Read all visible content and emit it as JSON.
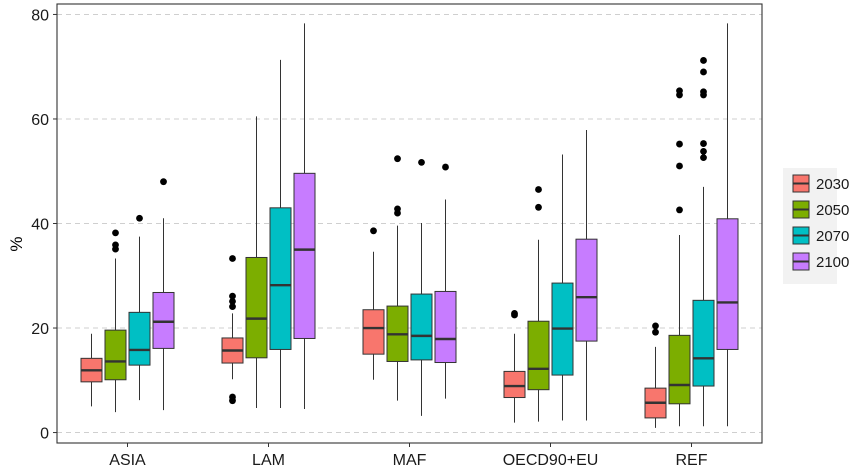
{
  "chart_data": {
    "type": "boxplot",
    "title": "",
    "xlabel": "",
    "ylabel": "%",
    "ylim": [
      -2,
      82
    ],
    "yticks": [
      0,
      20,
      40,
      60,
      80
    ],
    "grid": "horizontal-dashed",
    "legend_placement": "right",
    "categories": [
      "ASIA",
      "LAM",
      "MAF",
      "OECD90+EU",
      "REF"
    ],
    "series": [
      {
        "name": "2030",
        "color": "#F8766D"
      },
      {
        "name": "2050",
        "color": "#7CAE00"
      },
      {
        "name": "2070",
        "color": "#00BFC4"
      },
      {
        "name": "2100",
        "color": "#C77CFF"
      }
    ],
    "boxes": [
      [
        {
          "min": 5,
          "q1": 9.7,
          "median": 11.9,
          "q3": 14.2,
          "max": 18.9,
          "outliers": []
        },
        {
          "min": 3.9,
          "q1": 10.1,
          "median": 13.6,
          "q3": 19.6,
          "max": 33.3,
          "outliers": [
            35.1,
            35.9,
            38.2
          ]
        },
        {
          "min": 6.2,
          "q1": 12.9,
          "median": 15.8,
          "q3": 23,
          "max": 37.5,
          "outliers": [
            41
          ]
        },
        {
          "min": 4.3,
          "q1": 16.1,
          "median": 21.2,
          "q3": 26.8,
          "max": 41,
          "outliers": [
            48
          ]
        }
      ],
      [
        {
          "min": 10.2,
          "q1": 13.3,
          "median": 15.7,
          "q3": 18.1,
          "max": 22.8,
          "outliers": [
            6.1,
            6.8,
            24.1,
            25.1,
            26.1,
            33.3
          ]
        },
        {
          "min": 4.7,
          "q1": 14.3,
          "median": 21.8,
          "q3": 33.5,
          "max": 60.5,
          "outliers": []
        },
        {
          "min": 4.7,
          "q1": 15.9,
          "median": 28.2,
          "q3": 43,
          "max": 71.3,
          "outliers": []
        },
        {
          "min": 4.5,
          "q1": 18,
          "median": 35,
          "q3": 49.6,
          "max": 78.3,
          "outliers": []
        }
      ],
      [
        {
          "min": 10.1,
          "q1": 15,
          "median": 20,
          "q3": 23.5,
          "max": 34.6,
          "outliers": [
            38.6
          ]
        },
        {
          "min": 6.1,
          "q1": 13.6,
          "median": 18.8,
          "q3": 24.2,
          "max": 39.6,
          "outliers": [
            42,
            42.8,
            52.4
          ]
        },
        {
          "min": 3.2,
          "q1": 13.9,
          "median": 18.5,
          "q3": 26.5,
          "max": 40.1,
          "outliers": [
            51.7
          ]
        },
        {
          "min": 6.5,
          "q1": 13.4,
          "median": 17.9,
          "q3": 27,
          "max": 44.6,
          "outliers": [
            50.8
          ]
        }
      ],
      [
        {
          "min": 1.9,
          "q1": 6.7,
          "median": 8.9,
          "q3": 11.7,
          "max": 18.9,
          "outliers": [
            22.5,
            22.8
          ]
        },
        {
          "min": 2.1,
          "q1": 8.2,
          "median": 12.2,
          "q3": 21.3,
          "max": 36.9,
          "outliers": [
            43.1,
            46.5
          ]
        },
        {
          "min": 2.3,
          "q1": 11,
          "median": 19.9,
          "q3": 28.6,
          "max": 53.2,
          "outliers": []
        },
        {
          "min": 2.3,
          "q1": 17.5,
          "median": 25.9,
          "q3": 37,
          "max": 57.9,
          "outliers": []
        }
      ],
      [
        {
          "min": 0.9,
          "q1": 2.8,
          "median": 5.7,
          "q3": 8.5,
          "max": 16.4,
          "outliers": [
            19.2,
            20.4
          ]
        },
        {
          "min": 1.2,
          "q1": 5.5,
          "median": 9.1,
          "q3": 18.6,
          "max": 37.8,
          "outliers": [
            42.6,
            51,
            55.2,
            64.6,
            65.4
          ]
        },
        {
          "min": 1.2,
          "q1": 8.9,
          "median": 14.2,
          "q3": 25.3,
          "max": 47,
          "outliers": [
            52.6,
            53.8,
            55.3,
            64.6,
            65.2,
            69,
            71.2
          ]
        },
        {
          "min": 1.2,
          "q1": 15.9,
          "median": 24.9,
          "q3": 40.9,
          "max": 78.3,
          "outliers": []
        }
      ]
    ]
  }
}
